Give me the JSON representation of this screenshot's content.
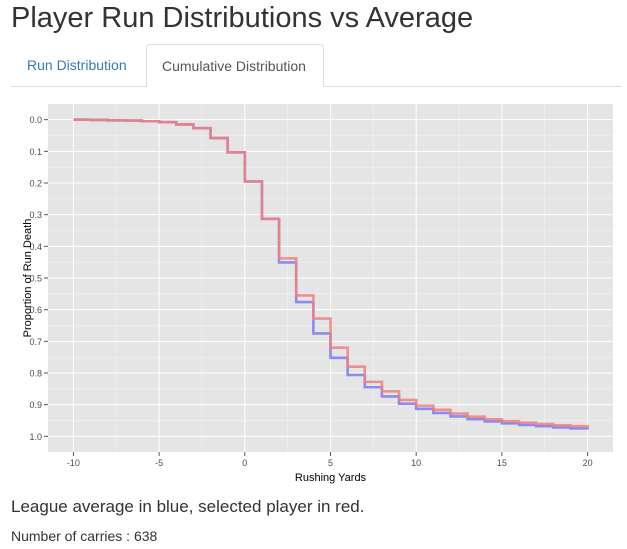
{
  "page": {
    "title": "Player Run Distributions vs Average"
  },
  "tabs": [
    {
      "label": "Run Distribution",
      "active": false
    },
    {
      "label": "Cumulative Distribution",
      "active": true
    }
  ],
  "caption": "League average in blue, selected player in red.",
  "carries": {
    "label": "Number of carries : ",
    "value": "638"
  },
  "colors": {
    "league": "#7b7bf0",
    "player": "#f08080",
    "panel_bg": "#e5e5e5",
    "grid": "#ffffff",
    "link": "#337ab7"
  },
  "chart_data": {
    "type": "line",
    "step": true,
    "xlabel": "Rushing Yards",
    "ylabel": "Proportion of Run Death",
    "xlim": [
      -10,
      20
    ],
    "ylim": [
      0,
      1.0
    ],
    "y_reversed": true,
    "x_ticks": [
      -10,
      -5,
      0,
      5,
      10,
      15,
      20
    ],
    "y_ticks": [
      0.0,
      0.1,
      0.2,
      0.3,
      0.4,
      0.5,
      0.6,
      0.7,
      0.8,
      0.9,
      1.0
    ],
    "y_tick_labels": [
      "0.0",
      "0.1",
      "0.2",
      "0.3",
      "0.4",
      "0.5",
      "0.6",
      "0.7",
      "0.8",
      "0.9",
      "1.0"
    ],
    "grid": true,
    "x": [
      -10,
      -9,
      -8,
      -7,
      -6,
      -5,
      -4,
      -3,
      -2,
      -1,
      0,
      1,
      2,
      3,
      4,
      5,
      6,
      7,
      8,
      9,
      10,
      11,
      12,
      13,
      14,
      15,
      16,
      17,
      18,
      19,
      20
    ],
    "series": [
      {
        "color_key": "league",
        "values": [
          0.0,
          0.001,
          0.002,
          0.003,
          0.005,
          0.008,
          0.015,
          0.027,
          0.058,
          0.103,
          0.195,
          0.313,
          0.451,
          0.576,
          0.675,
          0.752,
          0.806,
          0.845,
          0.874,
          0.897,
          0.913,
          0.926,
          0.937,
          0.946,
          0.953,
          0.959,
          0.964,
          0.968,
          0.972,
          0.975,
          0.978
        ]
      },
      {
        "color_key": "player",
        "values": [
          0.0,
          0.001,
          0.002,
          0.003,
          0.005,
          0.008,
          0.015,
          0.027,
          0.058,
          0.103,
          0.195,
          0.313,
          0.438,
          0.555,
          0.628,
          0.72,
          0.78,
          0.828,
          0.858,
          0.885,
          0.903,
          0.916,
          0.928,
          0.938,
          0.946,
          0.952,
          0.957,
          0.961,
          0.965,
          0.968,
          0.97
        ]
      }
    ]
  }
}
